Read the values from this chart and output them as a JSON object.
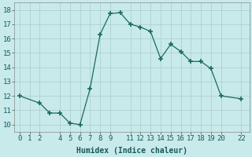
{
  "x": [
    0,
    2,
    3,
    4,
    5,
    6,
    7,
    8,
    9,
    10,
    11,
    12,
    13,
    14,
    15,
    16,
    17,
    18,
    19,
    20,
    22
  ],
  "y": [
    12.0,
    11.5,
    10.8,
    10.8,
    10.1,
    10.0,
    12.5,
    16.3,
    17.75,
    17.8,
    17.0,
    16.8,
    16.5,
    14.6,
    15.6,
    15.1,
    14.4,
    14.4,
    13.9,
    12.0,
    11.8
  ],
  "line_color": "#1a6b5a",
  "marker": "+",
  "marker_size": 4,
  "bg_color": "#c8eaea",
  "grid_color": "#b0d0d0",
  "xlabel": "Humidex (Indice chaleur)",
  "xlabel_fontsize": 7,
  "xticks": [
    0,
    1,
    2,
    4,
    5,
    6,
    7,
    8,
    9,
    11,
    12,
    13,
    14,
    15,
    16,
    17,
    18,
    19,
    20,
    22
  ],
  "yticks": [
    10,
    11,
    12,
    13,
    14,
    15,
    16,
    17,
    18
  ],
  "xlim": [
    -0.5,
    22.8
  ],
  "ylim": [
    9.5,
    18.5
  ],
  "tick_fontsize": 6.5
}
